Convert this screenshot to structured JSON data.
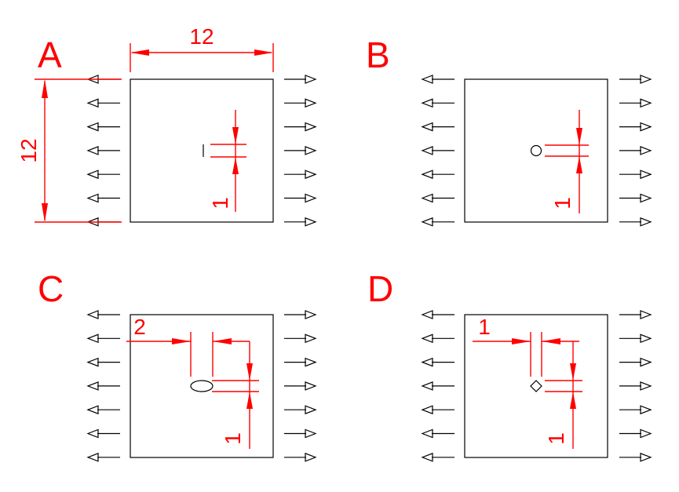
{
  "panels": [
    {
      "id": "A",
      "label": "A",
      "hole": "crack",
      "dims": {
        "plate_width": "12",
        "plate_height": "12",
        "hole_height": "1"
      }
    },
    {
      "id": "B",
      "label": "B",
      "hole": "circle",
      "dims": {
        "hole_height": "1"
      }
    },
    {
      "id": "C",
      "label": "C",
      "hole": "ellipse",
      "dims": {
        "hole_width": "2",
        "hole_height": "1"
      }
    },
    {
      "id": "D",
      "label": "D",
      "hole": "diamond",
      "dims": {
        "hole_width": "1",
        "hole_height": "1"
      }
    }
  ],
  "colors": {
    "annotation": "#ff0000",
    "geometry": "#000000"
  }
}
